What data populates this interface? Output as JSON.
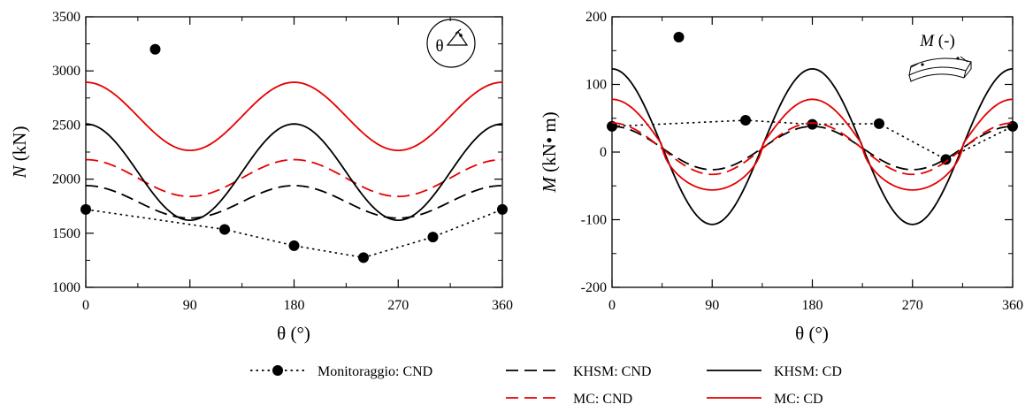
{
  "chart_data": [
    {
      "type": "line",
      "xlabel": "θ (°)",
      "ylabel_italic": "N",
      "ylabel_unit": " (kN)",
      "xlim": [
        0,
        360
      ],
      "ylim": [
        1000,
        3500
      ],
      "xticks": [
        "0",
        "90",
        "180",
        "270",
        "360"
      ],
      "yticks": [
        "1000",
        "1500",
        "2000",
        "2500",
        "3000",
        "3500"
      ],
      "inset_label": "θ",
      "series": [
        {
          "name": "Monitoraggio: CND",
          "color": "#000000",
          "style": "dotted-markers",
          "x": [
            0,
            120,
            180,
            240,
            300,
            360
          ],
          "y": [
            1720,
            1535,
            1385,
            1275,
            1465,
            1720
          ]
        },
        {
          "name": "Monitoraggio: CND",
          "color": "#000000",
          "style": "marker-only",
          "x": [
            60
          ],
          "y": [
            3200
          ]
        },
        {
          "name": "KHSM: CND",
          "color": "#000000",
          "style": "dashed",
          "kind": "cos2",
          "center": 1790,
          "amplitude": 150
        },
        {
          "name": "MC: CND",
          "color": "#e60000",
          "style": "dashed",
          "kind": "cos2",
          "center": 2010,
          "amplitude": 170
        },
        {
          "name": "KHSM: CD",
          "color": "#000000",
          "style": "solid",
          "kind": "cos2",
          "center": 2065,
          "amplitude": 445
        },
        {
          "name": "MC: CD",
          "color": "#e60000",
          "style": "solid",
          "kind": "cos2",
          "center": 2580,
          "amplitude": 315
        }
      ]
    },
    {
      "type": "line",
      "xlabel": "θ (°)",
      "ylabel_italic": "M",
      "ylabel_unit": " (kN• m)",
      "xlim": [
        0,
        360
      ],
      "ylim": [
        -200,
        200
      ],
      "xticks": [
        "0",
        "90",
        "180",
        "270",
        "360"
      ],
      "yticks": [
        "-200",
        "-100",
        "0",
        "100",
        "200"
      ],
      "inset_label_italic": "M",
      "inset_label_rest": " (-)",
      "series": [
        {
          "name": "Monitoraggio: CND",
          "color": "#000000",
          "style": "dotted-markers",
          "x": [
            0,
            120,
            180,
            240,
            300,
            360
          ],
          "y": [
            38,
            47,
            41,
            42,
            -11,
            38
          ]
        },
        {
          "name": "Monitoraggio: CND",
          "color": "#000000",
          "style": "marker-only",
          "x": [
            60
          ],
          "y": [
            170
          ]
        },
        {
          "name": "KHSM: CND",
          "color": "#000000",
          "style": "dashed",
          "kind": "cos2",
          "center": 6,
          "amplitude": 32
        },
        {
          "name": "MC: CND",
          "color": "#e60000",
          "style": "dashed",
          "kind": "cos2",
          "center": 5,
          "amplitude": 38
        },
        {
          "name": "KHSM: CD",
          "color": "#000000",
          "style": "solid",
          "kind": "cos2",
          "center": 8,
          "amplitude": 115
        },
        {
          "name": "MC: CD",
          "color": "#e60000",
          "style": "solid",
          "kind": "cos2-flat",
          "center": 11,
          "amplitude": 67
        }
      ]
    }
  ],
  "legend": {
    "items": [
      {
        "label": "Monitoraggio: CND",
        "color": "#000000",
        "style": "dotted-markers"
      },
      {
        "label": "KHSM: CND",
        "color": "#000000",
        "style": "dashed"
      },
      {
        "label": "KHSM: CD",
        "color": "#000000",
        "style": "solid"
      },
      {
        "label": "MC: CND",
        "color": "#e60000",
        "style": "dashed"
      },
      {
        "label": "MC: CD",
        "color": "#e60000",
        "style": "solid"
      }
    ]
  }
}
